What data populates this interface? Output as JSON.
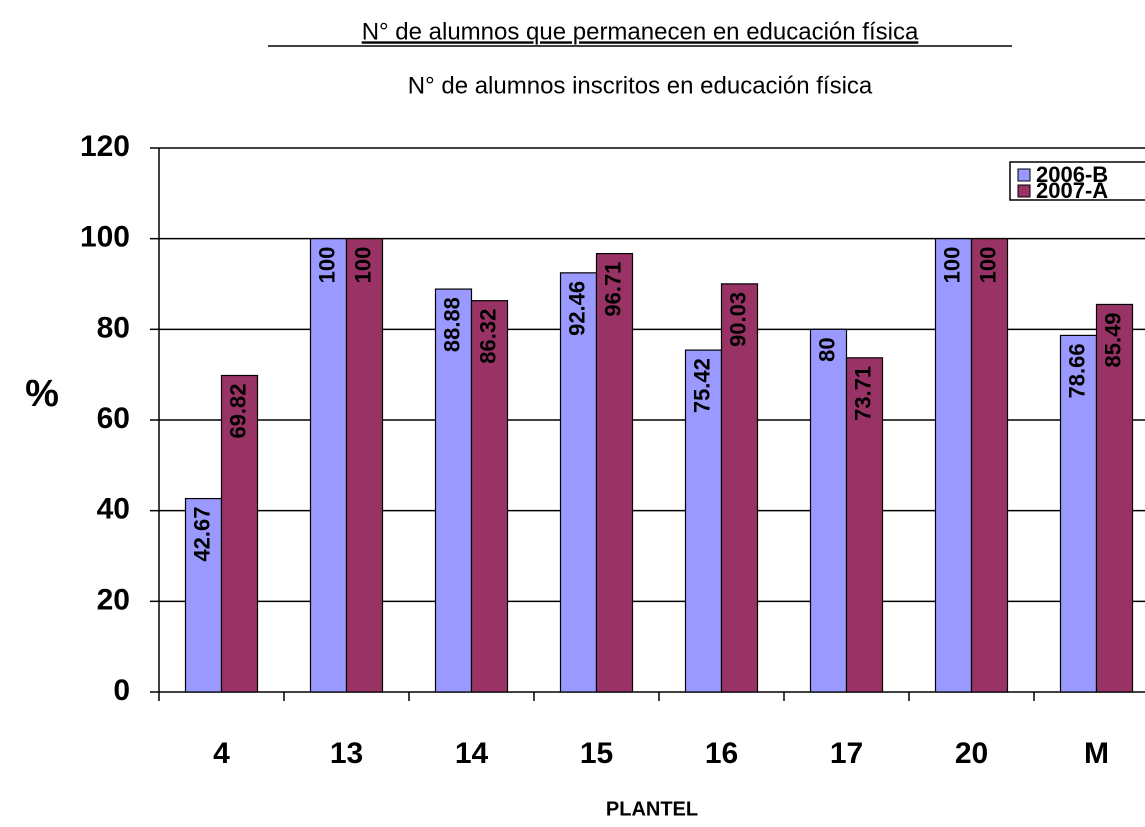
{
  "chart_data": {
    "type": "bar",
    "title": "N° de alumnos que permanecen en educación física",
    "subtitle": "N° de alumnos inscritos en educación física",
    "y_label": "%",
    "x_label": "PLANTEL",
    "categories": [
      "4",
      "13",
      "14",
      "15",
      "16",
      "17",
      "20",
      "M"
    ],
    "series": [
      {
        "name": "2006-B",
        "color": "#9999ff",
        "values": [
          42.67,
          100,
          88.88,
          92.46,
          75.42,
          80,
          100,
          78.66
        ]
      },
      {
        "name": "2007-A",
        "color": "#993366",
        "values": [
          69.82,
          100,
          86.32,
          96.71,
          90.03,
          73.71,
          100,
          85.49
        ]
      }
    ],
    "ylim": [
      0,
      120
    ],
    "yticks": [
      0,
      20,
      40,
      60,
      80,
      100,
      120
    ],
    "grid": true,
    "legend": "upper right"
  }
}
